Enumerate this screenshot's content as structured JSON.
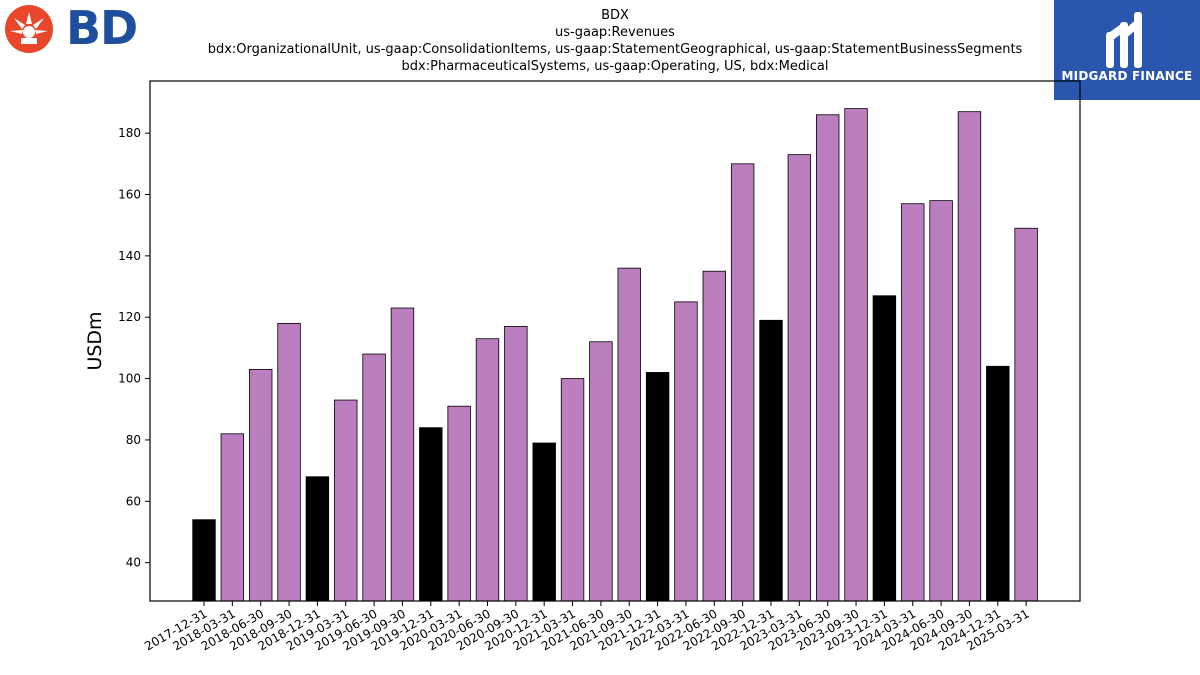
{
  "branding": {
    "company_logo_text": "BD",
    "company_logo_color": "#1f4e9c",
    "company_burst_color": "#e8472b",
    "watermark_text": "MIDGARD FINANCE",
    "watermark_bg": "#2a57ad"
  },
  "chart_data": {
    "type": "bar",
    "title_lines": [
      "BDX",
      "us-gaap:Revenues",
      "bdx:OrganizationalUnit, us-gaap:ConsolidationItems, us-gaap:StatementGeographical, us-gaap:StatementBusinessSegments",
      "bdx:PharmaceuticalSystems, us-gaap:Operating, US, bdx:Medical"
    ],
    "xlabel": "",
    "ylabel": "USDm",
    "ylim": [
      27.5,
      197
    ],
    "yticks": [
      40,
      60,
      80,
      100,
      120,
      140,
      160,
      180
    ],
    "grid": false,
    "categories": [
      "2017-12-31",
      "2018-03-31",
      "2018-06-30",
      "2018-09-30",
      "2018-12-31",
      "2019-03-31",
      "2019-06-30",
      "2019-09-30",
      "2019-12-31",
      "2020-03-31",
      "2020-06-30",
      "2020-09-30",
      "2020-12-31",
      "2021-03-31",
      "2021-06-30",
      "2021-09-30",
      "2021-12-31",
      "2022-03-31",
      "2022-06-30",
      "2022-09-30",
      "2022-12-31",
      "2023-03-31",
      "2023-06-30",
      "2023-09-30",
      "2023-12-31",
      "2024-03-31",
      "2024-06-30",
      "2024-09-30",
      "2024-12-31",
      "2025-03-31"
    ],
    "values": [
      54,
      82,
      103,
      118,
      68,
      93,
      108,
      123,
      84,
      91,
      113,
      117,
      79,
      100,
      112,
      136,
      102,
      125,
      135,
      170,
      119,
      173,
      186,
      188,
      127,
      157,
      158,
      187,
      104,
      149
    ],
    "highlight": [
      true,
      false,
      false,
      false,
      true,
      false,
      false,
      false,
      true,
      false,
      false,
      false,
      true,
      false,
      false,
      false,
      true,
      false,
      false,
      false,
      true,
      false,
      false,
      false,
      true,
      false,
      false,
      false,
      true,
      false
    ],
    "colors": {
      "default": "#bb7fc0",
      "highlight": "#000000",
      "edge": "#000000"
    }
  }
}
